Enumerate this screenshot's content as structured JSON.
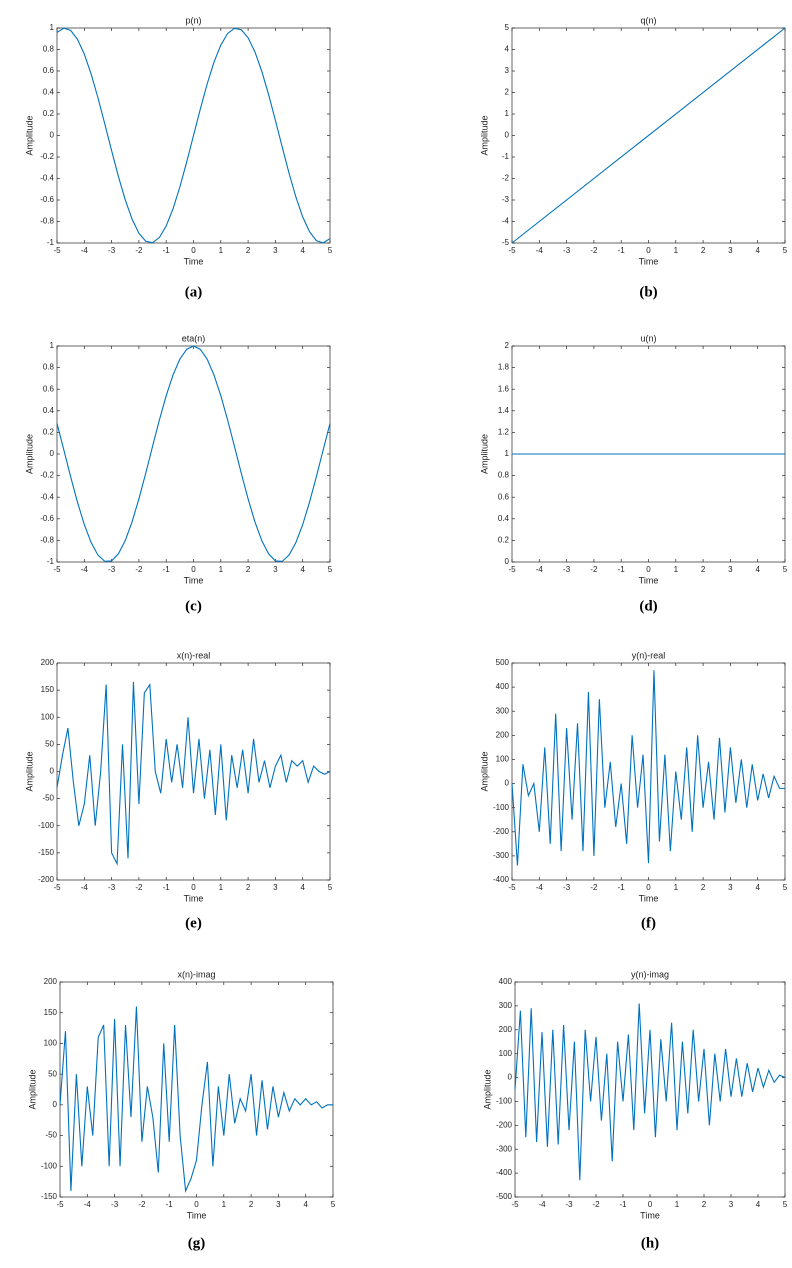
{
  "chart_data": [
    {
      "type": "line",
      "title": "p(n)",
      "xlabel": "Time",
      "ylabel": "Amplitude",
      "caption": "(a)",
      "color": "#0072bd",
      "x": [
        -5,
        -4.75,
        -4.5,
        -4.25,
        -4,
        -3.75,
        -3.5,
        -3.25,
        -3,
        -2.75,
        -2.5,
        -2.25,
        -2,
        -1.75,
        -1.5,
        -1.25,
        -1,
        -0.75,
        -0.5,
        -0.25,
        0,
        0.25,
        0.5,
        0.75,
        1,
        1.25,
        1.5,
        1.75,
        2,
        2.25,
        2.5,
        2.75,
        3,
        3.25,
        3.5,
        3.75,
        4,
        4.25,
        4.5,
        4.75,
        5
      ],
      "values": [
        0.959,
        0.999,
        0.978,
        0.895,
        0.757,
        0.572,
        0.351,
        0.108,
        -0.141,
        -0.382,
        -0.598,
        -0.778,
        -0.909,
        -0.984,
        -0.997,
        -0.949,
        -0.841,
        -0.682,
        -0.479,
        -0.247,
        0,
        0.247,
        0.479,
        0.682,
        0.841,
        0.949,
        0.997,
        0.984,
        0.909,
        0.778,
        0.598,
        0.382,
        0.141,
        -0.108,
        -0.351,
        -0.572,
        -0.757,
        -0.895,
        -0.978,
        -0.999,
        -0.959
      ],
      "xlim": [
        -5,
        5
      ],
      "ylim": [
        -1,
        1
      ],
      "xticks": [
        -5,
        -4,
        -3,
        -2,
        -1,
        0,
        1,
        2,
        3,
        4,
        5
      ],
      "yticks": [
        -1,
        -0.8,
        -0.6,
        -0.4,
        -0.2,
        0,
        0.2,
        0.4,
        0.6,
        0.8,
        1
      ]
    },
    {
      "type": "line",
      "title": "q(n)",
      "xlabel": "Time",
      "ylabel": "Amplitude",
      "caption": "(b)",
      "color": "#0072bd",
      "x": [
        -5,
        5
      ],
      "values": [
        -5,
        5
      ],
      "xlim": [
        -5,
        5
      ],
      "ylim": [
        -5,
        5
      ],
      "xticks": [
        -5,
        -4,
        -3,
        -2,
        -1,
        0,
        1,
        2,
        3,
        4,
        5
      ],
      "yticks": [
        -5,
        -4,
        -3,
        -2,
        -1,
        0,
        1,
        2,
        3,
        4,
        5
      ]
    },
    {
      "type": "line",
      "title": "eta(n)",
      "xlabel": "Time",
      "ylabel": "Amplitude",
      "caption": "(c)",
      "color": "#0072bd",
      "x": [
        -5,
        -4.75,
        -4.5,
        -4.25,
        -4,
        -3.75,
        -3.5,
        -3.25,
        -3,
        -2.75,
        -2.5,
        -2.25,
        -2,
        -1.75,
        -1.5,
        -1.25,
        -1,
        -0.75,
        -0.5,
        -0.25,
        0,
        0.25,
        0.5,
        0.75,
        1,
        1.25,
        1.5,
        1.75,
        2,
        2.25,
        2.5,
        2.75,
        3,
        3.25,
        3.5,
        3.75,
        4,
        4.25,
        4.5,
        4.75,
        5
      ],
      "values": [
        0.284,
        0.038,
        -0.211,
        -0.446,
        -0.654,
        -0.82,
        -0.936,
        -0.994,
        -0.99,
        -0.924,
        -0.801,
        -0.628,
        -0.416,
        -0.178,
        0.071,
        0.315,
        0.54,
        0.732,
        0.878,
        0.969,
        1,
        0.969,
        0.878,
        0.732,
        0.54,
        0.315,
        0.071,
        -0.178,
        -0.416,
        -0.628,
        -0.801,
        -0.924,
        -0.99,
        -0.994,
        -0.936,
        -0.82,
        -0.654,
        -0.446,
        -0.211,
        0.038,
        0.284
      ],
      "xlim": [
        -5,
        5
      ],
      "ylim": [
        -1,
        1
      ],
      "xticks": [
        -5,
        -4,
        -3,
        -2,
        -1,
        0,
        1,
        2,
        3,
        4,
        5
      ],
      "yticks": [
        -1,
        -0.8,
        -0.6,
        -0.4,
        -0.2,
        0,
        0.2,
        0.4,
        0.6,
        0.8,
        1
      ]
    },
    {
      "type": "line",
      "title": "u(n)",
      "xlabel": "Time",
      "ylabel": "Amplitude",
      "caption": "(d)",
      "color": "#0072bd",
      "x": [
        -5,
        5
      ],
      "values": [
        1,
        1
      ],
      "xlim": [
        -5,
        5
      ],
      "ylim": [
        0,
        2
      ],
      "xticks": [
        -5,
        -4,
        -3,
        -2,
        -1,
        0,
        1,
        2,
        3,
        4,
        5
      ],
      "yticks": [
        0,
        0.2,
        0.4,
        0.6,
        0.8,
        1,
        1.2,
        1.4,
        1.6,
        1.8,
        2
      ]
    },
    {
      "type": "line",
      "title": "x(n)-real",
      "xlabel": "Time",
      "ylabel": "Amplitude",
      "caption": "(e)",
      "color": "#0072bd",
      "x": [
        -5,
        -4.8,
        -4.6,
        -4.4,
        -4.2,
        -4,
        -3.8,
        -3.6,
        -3.4,
        -3.2,
        -3,
        -2.8,
        -2.6,
        -2.4,
        -2.2,
        -2,
        -1.8,
        -1.6,
        -1.4,
        -1.2,
        -1,
        -0.8,
        -0.6,
        -0.4,
        -0.2,
        0,
        0.2,
        0.4,
        0.6,
        0.8,
        1,
        1.2,
        1.4,
        1.6,
        1.8,
        2,
        2.2,
        2.4,
        2.6,
        2.8,
        3,
        3.2,
        3.4,
        3.6,
        3.8,
        4,
        4.2,
        4.4,
        4.6,
        4.8,
        5
      ],
      "values": [
        -30,
        30,
        80,
        -20,
        -100,
        -60,
        30,
        -100,
        0,
        160,
        -150,
        -170,
        50,
        -160,
        165,
        -60,
        145,
        160,
        0,
        -40,
        60,
        -20,
        50,
        -30,
        100,
        -40,
        60,
        -50,
        40,
        -80,
        50,
        -90,
        30,
        -30,
        40,
        -40,
        60,
        -20,
        20,
        -30,
        10,
        30,
        -20,
        20,
        10,
        20,
        -20,
        10,
        0,
        -5,
        0
      ],
      "xlim": [
        -5,
        5
      ],
      "ylim": [
        -200,
        200
      ],
      "xticks": [
        -5,
        -4,
        -3,
        -2,
        -1,
        0,
        1,
        2,
        3,
        4,
        5
      ],
      "yticks": [
        -200,
        -150,
        -100,
        -50,
        0,
        50,
        100,
        150,
        200
      ]
    },
    {
      "type": "line",
      "title": "y(n)-real",
      "xlabel": "Time",
      "ylabel": "Amplitude",
      "caption": "(f)",
      "color": "#0072bd",
      "x": [
        -5,
        -4.8,
        -4.6,
        -4.4,
        -4.2,
        -4,
        -3.8,
        -3.6,
        -3.4,
        -3.2,
        -3,
        -2.8,
        -2.6,
        -2.4,
        -2.2,
        -2,
        -1.8,
        -1.6,
        -1.4,
        -1.2,
        -1,
        -0.8,
        -0.6,
        -0.4,
        -0.2,
        0,
        0.2,
        0.4,
        0.6,
        0.8,
        1,
        1.2,
        1.4,
        1.6,
        1.8,
        2,
        2.2,
        2.4,
        2.6,
        2.8,
        3,
        3.2,
        3.4,
        3.6,
        3.8,
        4,
        4.2,
        4.4,
        4.6,
        4.8,
        5
      ],
      "values": [
        0,
        -340,
        80,
        -50,
        0,
        -200,
        150,
        -250,
        290,
        -280,
        230,
        -150,
        250,
        -280,
        380,
        -300,
        350,
        -100,
        90,
        -180,
        0,
        -250,
        200,
        -100,
        120,
        -330,
        470,
        -240,
        120,
        -280,
        50,
        -150,
        150,
        -200,
        200,
        -100,
        90,
        -150,
        190,
        -120,
        150,
        -80,
        100,
        -100,
        80,
        -70,
        40,
        -60,
        30,
        -20,
        -20
      ],
      "xlim": [
        -5,
        5
      ],
      "ylim": [
        -400,
        500
      ],
      "xticks": [
        -5,
        -4,
        -3,
        -2,
        -1,
        0,
        1,
        2,
        3,
        4,
        5
      ],
      "yticks": [
        -400,
        -300,
        -200,
        -100,
        0,
        100,
        200,
        300,
        400,
        500
      ]
    },
    {
      "type": "line",
      "title": "x(n)-imag",
      "xlabel": "Time",
      "ylabel": "Amplitude",
      "caption": "(g)",
      "color": "#0072bd",
      "x": [
        -5,
        -4.8,
        -4.6,
        -4.4,
        -4.2,
        -4,
        -3.8,
        -3.6,
        -3.4,
        -3.2,
        -3,
        -2.8,
        -2.6,
        -2.4,
        -2.2,
        -2,
        -1.8,
        -1.6,
        -1.4,
        -1.2,
        -1,
        -0.8,
        -0.6,
        -0.4,
        -0.2,
        0,
        0.2,
        0.4,
        0.6,
        0.8,
        1,
        1.2,
        1.4,
        1.6,
        1.8,
        2,
        2.2,
        2.4,
        2.6,
        2.8,
        3,
        3.2,
        3.4,
        3.6,
        3.8,
        4,
        4.2,
        4.4,
        4.6,
        4.8,
        5
      ],
      "values": [
        0,
        120,
        -140,
        50,
        -100,
        30,
        -50,
        110,
        130,
        -100,
        140,
        -100,
        130,
        -20,
        160,
        -60,
        30,
        -20,
        -110,
        100,
        -60,
        130,
        -50,
        -140,
        -120,
        -90,
        0,
        70,
        -100,
        30,
        -50,
        50,
        -30,
        10,
        -10,
        50,
        -50,
        40,
        -40,
        30,
        -20,
        20,
        -10,
        10,
        0,
        10,
        0,
        5,
        -5,
        0,
        0
      ],
      "xlim": [
        -5,
        5
      ],
      "ylim": [
        -150,
        200
      ],
      "xticks": [
        -5,
        -4,
        -3,
        -2,
        -1,
        0,
        1,
        2,
        3,
        4,
        5
      ],
      "yticks": [
        -150,
        -100,
        -50,
        0,
        50,
        100,
        150,
        200
      ]
    },
    {
      "type": "line",
      "title": "y(n)-imag",
      "xlabel": "Time",
      "ylabel": "Amplitude",
      "caption": "(h)",
      "color": "#0072bd",
      "x": [
        -5,
        -4.8,
        -4.6,
        -4.4,
        -4.2,
        -4,
        -3.8,
        -3.6,
        -3.4,
        -3.2,
        -3,
        -2.8,
        -2.6,
        -2.4,
        -2.2,
        -2,
        -1.8,
        -1.6,
        -1.4,
        -1.2,
        -1,
        -0.8,
        -0.6,
        -0.4,
        -0.2,
        0,
        0.2,
        0.4,
        0.6,
        0.8,
        1,
        1.2,
        1.4,
        1.6,
        1.8,
        2,
        2.2,
        2.4,
        2.6,
        2.8,
        3,
        3.2,
        3.4,
        3.6,
        3.8,
        4,
        4.2,
        4.4,
        4.6,
        4.8,
        5
      ],
      "values": [
        -50,
        280,
        -250,
        290,
        -270,
        190,
        -290,
        200,
        -280,
        220,
        -220,
        150,
        -430,
        200,
        -100,
        170,
        -180,
        100,
        -350,
        150,
        -100,
        180,
        -220,
        310,
        -150,
        200,
        -250,
        160,
        -100,
        230,
        -220,
        150,
        -150,
        200,
        -100,
        120,
        -200,
        100,
        -100,
        120,
        -80,
        80,
        -80,
        60,
        -60,
        40,
        -40,
        30,
        -20,
        10,
        0
      ],
      "xlim": [
        -5,
        5
      ],
      "ylim": [
        -500,
        400
      ],
      "xticks": [
        -5,
        -4,
        -3,
        -2,
        -1,
        0,
        1,
        2,
        3,
        4,
        5
      ],
      "yticks": [
        -500,
        -400,
        -300,
        -200,
        -100,
        0,
        100,
        200,
        300,
        400
      ]
    }
  ]
}
